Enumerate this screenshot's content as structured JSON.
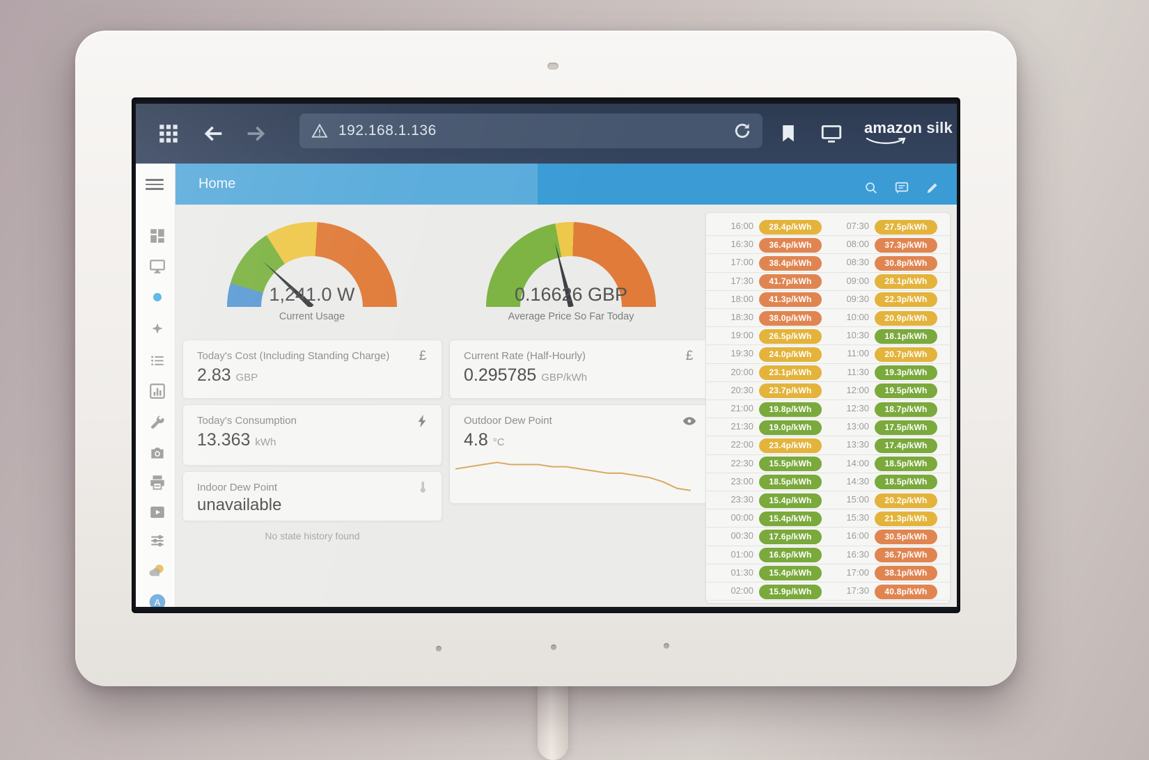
{
  "browser": {
    "url": "192.168.1.136",
    "brand_main": "amazon",
    "brand_sub": " silk",
    "icons": [
      "apps-grid",
      "back-arrow",
      "forward-arrow",
      "warning-triangle",
      "refresh",
      "bookmark",
      "desktop",
      "brand-smile"
    ]
  },
  "app": {
    "title": "Home",
    "header_icons": [
      "search",
      "comment",
      "pencil"
    ],
    "sidebar": [
      "view-dashboard",
      "monitor",
      "active-dot",
      "sparkle",
      "list",
      "chart-box",
      "wrench",
      "camera",
      "printer",
      "media",
      "tune",
      "weather",
      "avatar"
    ]
  },
  "gauges": [
    {
      "value": "1,241.0 W",
      "label": "Current Usage",
      "needle_deg": -47,
      "segments": [
        {
          "color": "#5b9bd5",
          "to": 9
        },
        {
          "color": "#7cb342",
          "to": 32
        },
        {
          "color": "#eec84a",
          "to": 52
        },
        {
          "color": "#e07b39",
          "to": 100
        }
      ]
    },
    {
      "value": "0.16626 GBP",
      "label": "Average Price So Far Today",
      "needle_deg": -14,
      "segments": [
        {
          "color": "#7cb342",
          "to": 44
        },
        {
          "color": "#eec84a",
          "to": 51
        },
        {
          "color": "#e07b39",
          "to": 100
        }
      ]
    }
  ],
  "stat_cards": {
    "todays_cost": {
      "title": "Today's Cost (Including Standing Charge)",
      "value": "2.83",
      "unit": "GBP",
      "icon": "currency-gbp"
    },
    "current_rate": {
      "title": "Current Rate (Half-Hourly)",
      "value": "0.295785",
      "unit": "GBP/kWh",
      "icon": "currency-gbp"
    },
    "todays_consumption": {
      "title": "Today's Consumption",
      "value": "13.363",
      "unit": "kWh",
      "icon": "lightning-bolt"
    },
    "outdoor_dew_point": {
      "title": "Outdoor Dew Point",
      "value": "4.8",
      "unit": "°C",
      "icon": "eye"
    },
    "indoor_dew_point": {
      "title": "Indoor Dew Point",
      "value": "unavailable",
      "unit": "",
      "icon": "thermometer"
    }
  },
  "history_card": {
    "message": "No state history found"
  },
  "rate_table": {
    "left_rows": [
      [
        "16:00",
        "28.4p/kWh",
        "yellow"
      ],
      [
        "16:30",
        "36.4p/kWh",
        "orange"
      ],
      [
        "17:00",
        "38.4p/kWh",
        "orange"
      ],
      [
        "17:30",
        "41.7p/kWh",
        "orange"
      ],
      [
        "18:00",
        "41.3p/kWh",
        "orange"
      ],
      [
        "18:30",
        "38.0p/kWh",
        "orange"
      ],
      [
        "19:00",
        "26.5p/kWh",
        "yellow"
      ],
      [
        "19:30",
        "24.0p/kWh",
        "yellow"
      ],
      [
        "20:00",
        "23.1p/kWh",
        "yellow"
      ],
      [
        "20:30",
        "23.7p/kWh",
        "yellow"
      ],
      [
        "21:00",
        "19.8p/kWh",
        "green"
      ],
      [
        "21:30",
        "19.0p/kWh",
        "green"
      ],
      [
        "22:00",
        "23.4p/kWh",
        "yellow"
      ],
      [
        "22:30",
        "15.5p/kWh",
        "green"
      ],
      [
        "23:00",
        "18.5p/kWh",
        "green"
      ],
      [
        "23:30",
        "15.4p/kWh",
        "green"
      ],
      [
        "00:00",
        "15.4p/kWh",
        "green"
      ],
      [
        "00:30",
        "17.6p/kWh",
        "green"
      ],
      [
        "01:00",
        "16.6p/kWh",
        "green"
      ],
      [
        "01:30",
        "15.4p/kWh",
        "green"
      ],
      [
        "02:00",
        "15.9p/kWh",
        "green"
      ]
    ],
    "right_rows": [
      [
        "07:30",
        "27.5p/kWh",
        "yellow"
      ],
      [
        "08:00",
        "37.3p/kWh",
        "orange"
      ],
      [
        "08:30",
        "30.8p/kWh",
        "orange"
      ],
      [
        "09:00",
        "28.1p/kWh",
        "yellow"
      ],
      [
        "09:30",
        "22.3p/kWh",
        "yellow"
      ],
      [
        "10:00",
        "20.9p/kWh",
        "yellow"
      ],
      [
        "10:30",
        "18.1p/kWh",
        "green"
      ],
      [
        "11:00",
        "20.7p/kWh",
        "yellow"
      ],
      [
        "11:30",
        "19.3p/kWh",
        "green"
      ],
      [
        "12:00",
        "19.5p/kWh",
        "green"
      ],
      [
        "12:30",
        "18.7p/kWh",
        "green"
      ],
      [
        "13:00",
        "17.5p/kWh",
        "green"
      ],
      [
        "13:30",
        "17.4p/kWh",
        "green"
      ],
      [
        "14:00",
        "18.5p/kWh",
        "green"
      ],
      [
        "14:30",
        "18.5p/kWh",
        "green"
      ],
      [
        "15:00",
        "20.2p/kWh",
        "yellow"
      ],
      [
        "15:30",
        "21.3p/kWh",
        "yellow"
      ],
      [
        "16:00",
        "30.5p/kWh",
        "orange"
      ],
      [
        "16:30",
        "36.7p/kWh",
        "orange"
      ],
      [
        "17:00",
        "38.1p/kWh",
        "orange"
      ],
      [
        "17:30",
        "40.8p/kWh",
        "orange"
      ]
    ]
  },
  "chart_data": {
    "type": "line",
    "title": "Outdoor Dew Point history",
    "ylabel": "°C",
    "values": [
      5.8,
      5.9,
      6.0,
      6.1,
      6.0,
      6.0,
      6.0,
      5.9,
      5.9,
      5.8,
      5.7,
      5.6,
      5.6,
      5.5,
      5.4,
      5.2,
      4.9,
      4.8
    ],
    "ylim": [
      4.5,
      6.5
    ],
    "grid": false,
    "legend": "none"
  },
  "colors": {
    "green": "#7aa93c",
    "yellow": "#e3b33b",
    "orange": "#e08551",
    "ha_blue": "#3a9bd5",
    "sparkline": "#d8ab60",
    "accent": "#2fa7e0"
  }
}
